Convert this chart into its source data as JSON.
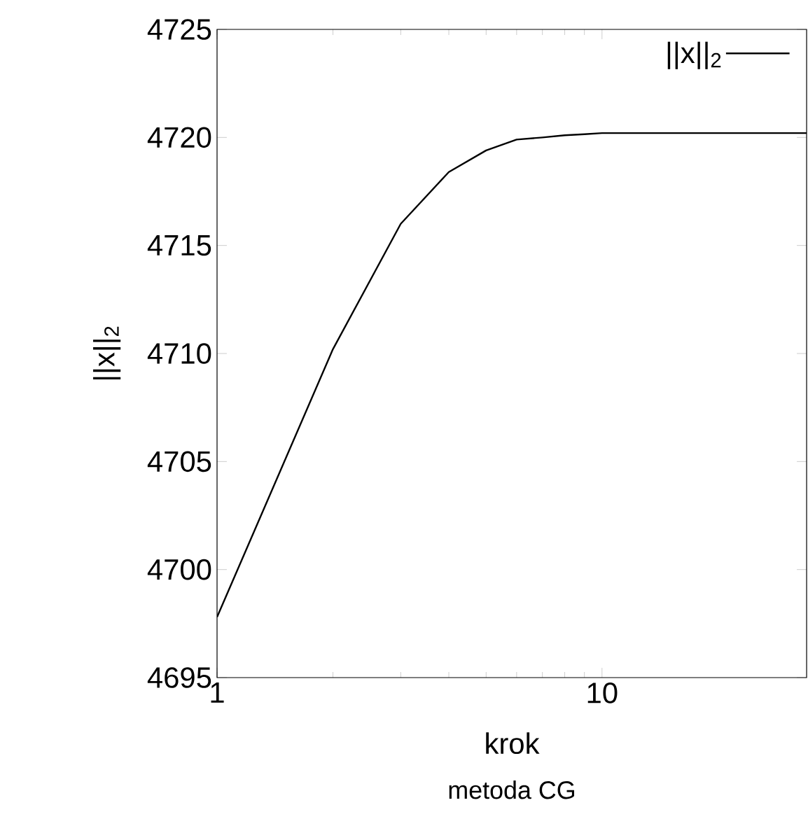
{
  "chart_data": {
    "type": "line",
    "title": "metoda CG",
    "xlabel": "krok",
    "ylabel": "||x||$_{2}$",
    "x": [
      1,
      2,
      3,
      4,
      5,
      6,
      7,
      8,
      9,
      10,
      15,
      20,
      25,
      30,
      34
    ],
    "series": [
      {
        "name": "||x||$_{2}$",
        "color": "#000000",
        "values": [
          4697.8,
          4710.2,
          4716.0,
          4718.4,
          4719.4,
          4719.9,
          4720.0,
          4720.1,
          4720.15,
          4720.2,
          4720.2,
          4720.2,
          4720.2,
          4720.2,
          4720.2
        ]
      }
    ],
    "xlim": [
      1,
      34
    ],
    "ylim": [
      4695,
      4725
    ],
    "xticks": [
      1,
      10
    ],
    "yticks": [
      4695,
      4700,
      4705,
      4710,
      4715,
      4720,
      4725
    ],
    "log": "x",
    "legend": "top right"
  }
}
